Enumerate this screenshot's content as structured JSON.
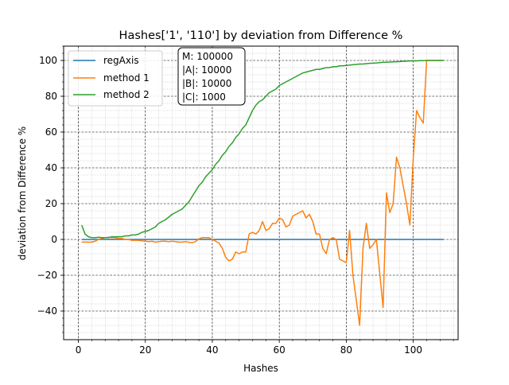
{
  "chart_data": {
    "type": "line",
    "title": "Hashes['1', '110'] by deviation from Difference %",
    "xlabel": "Hashes",
    "ylabel": "deviation from Difference %",
    "xlim": [
      -4.4,
      113.4
    ],
    "ylim": [
      -56,
      108
    ],
    "x_ticks": [
      0,
      20,
      40,
      60,
      80,
      100
    ],
    "y_ticks": [
      -40,
      -20,
      0,
      20,
      40,
      60,
      80,
      100
    ],
    "x_tick_labels": [
      "0",
      "20",
      "40",
      "60",
      "80",
      "100"
    ],
    "y_tick_labels": [
      "−40",
      "−20",
      "0",
      "20",
      "40",
      "60",
      "80",
      "100"
    ],
    "grid": true,
    "legend_position": "top-left",
    "annotation": {
      "lines": [
        "M: 100000",
        "|A|: 10000",
        "|B|: 10000",
        "|C|: 1000"
      ]
    },
    "series": [
      {
        "name": "regAxis",
        "color": "#1f77b4",
        "x": [
          1,
          109
        ],
        "y": [
          0,
          0
        ]
      },
      {
        "name": "method 1",
        "color": "#ff7f0e",
        "x": [
          1,
          2,
          3,
          4,
          5,
          6,
          7,
          8,
          9,
          10,
          11,
          12,
          13,
          14,
          15,
          16,
          17,
          18,
          19,
          20,
          21,
          22,
          23,
          24,
          25,
          26,
          27,
          28,
          29,
          30,
          31,
          32,
          33,
          34,
          35,
          36,
          37,
          38,
          39,
          40,
          41,
          42,
          43,
          44,
          45,
          46,
          47,
          48,
          49,
          50,
          51,
          52,
          53,
          54,
          55,
          56,
          57,
          58,
          59,
          60,
          61,
          62,
          63,
          64,
          65,
          66,
          67,
          68,
          69,
          70,
          71,
          72,
          73,
          74,
          75,
          76,
          77,
          78,
          79,
          80,
          81,
          82,
          84,
          85,
          86,
          87,
          88,
          89,
          91,
          92,
          93,
          94,
          95,
          96,
          97,
          98,
          99,
          100,
          101,
          102,
          103,
          104,
          105,
          106,
          107,
          108,
          109
        ],
        "y": [
          -1.5,
          -1.5,
          -1.5,
          -1.5,
          -1,
          0,
          0.5,
          1,
          1.2,
          1,
          1,
          0.5,
          0.5,
          0,
          0,
          -0.5,
          -0.5,
          -0.5,
          -0.8,
          -1,
          -1.2,
          -1,
          -1.5,
          -1.2,
          -1,
          -1,
          -1.3,
          -1,
          -1.2,
          -1.5,
          -1.5,
          -1.2,
          -1.6,
          -1.8,
          -1.2,
          0.3,
          1,
          1,
          1,
          0,
          -1,
          -2,
          -5,
          -10,
          -12,
          -11,
          -7,
          -8,
          -7,
          -7,
          3,
          4,
          3,
          5,
          10,
          5,
          6,
          9,
          9,
          12,
          11,
          7,
          8,
          13,
          14,
          15,
          16,
          12,
          14,
          10,
          3,
          3,
          -5,
          -8,
          0,
          1,
          0,
          -11,
          -12,
          -13,
          5,
          -20,
          -48,
          -5,
          9,
          -5,
          -3,
          0,
          -38,
          26,
          15,
          20,
          46,
          40,
          30,
          20,
          8,
          45,
          72,
          68,
          65,
          100,
          100,
          100,
          100,
          100,
          100
        ]
      },
      {
        "name": "method 2",
        "color": "#2ca02c",
        "x": [
          1,
          2,
          3,
          4,
          5,
          6,
          7,
          8,
          9,
          10,
          11,
          12,
          13,
          14,
          15,
          16,
          17,
          18,
          19,
          20,
          21,
          22,
          23,
          24,
          25,
          26,
          27,
          28,
          29,
          30,
          31,
          32,
          33,
          34,
          35,
          36,
          37,
          38,
          39,
          40,
          41,
          42,
          43,
          44,
          45,
          46,
          47,
          48,
          49,
          50,
          51,
          52,
          53,
          54,
          55,
          56,
          57,
          58,
          59,
          60,
          61,
          62,
          63,
          64,
          65,
          66,
          67,
          68,
          69,
          70,
          71,
          72,
          73,
          74,
          75,
          76,
          77,
          78,
          79,
          80,
          81,
          82,
          83,
          84,
          85,
          86,
          87,
          88,
          89,
          90,
          91,
          92,
          93,
          94,
          95,
          96,
          97,
          98,
          99,
          100,
          101,
          102,
          103,
          104,
          105,
          106,
          107,
          108,
          109
        ],
        "y": [
          8,
          3,
          1.5,
          1,
          1,
          1.2,
          1,
          1,
          1,
          1.5,
          1.5,
          1.5,
          1.5,
          2,
          2,
          2.5,
          2.5,
          3,
          4,
          4.5,
          5,
          6,
          7,
          9,
          10,
          11,
          12.5,
          14,
          15,
          16,
          17,
          19,
          21,
          24,
          27,
          30,
          32,
          35,
          37,
          39,
          42,
          44,
          47,
          49,
          52,
          54,
          57,
          59,
          62,
          64,
          68,
          72,
          75,
          77,
          78,
          80,
          82,
          83,
          84,
          86,
          87,
          88,
          89,
          90,
          91,
          92,
          93,
          93.5,
          94,
          94.5,
          95,
          95,
          95.5,
          96,
          96,
          96.5,
          96.5,
          97,
          97,
          97.2,
          97.4,
          97.6,
          97.8,
          98,
          98,
          98.2,
          98.4,
          98.5,
          98.6,
          98.8,
          99,
          99,
          99.1,
          99.2,
          99.3,
          99.4,
          99.5,
          99.6,
          99.7,
          99.8,
          99.8,
          99.9,
          99.9,
          100,
          100,
          100,
          100,
          100,
          100
        ]
      }
    ]
  }
}
